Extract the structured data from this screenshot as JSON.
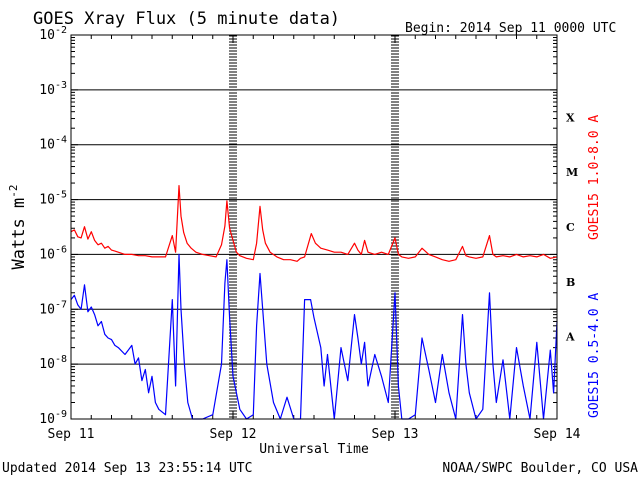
{
  "title": "GOES Xray Flux (5 minute data)",
  "begin_label": "Begin:  2014 Sep 11 0000 UTC",
  "footer_left": "Updated 2014 Sep 13 23:55:14 UTC",
  "footer_right": "NOAA/SWPC Boulder, CO USA",
  "colors": {
    "long": "#ff0000",
    "short": "#0000ff",
    "grid": "#000000"
  },
  "chart_data": {
    "type": "line",
    "title": "GOES Xray Flux (5 minute data)",
    "xlabel": "Universal Time",
    "ylabel": "Watts m",
    "ylabel_sup": "-2",
    "yscale": "log",
    "ylim": [
      1e-09,
      0.01
    ],
    "xlim": [
      0,
      72
    ],
    "x_unit": "hours since 2014 Sep 11 00:00 UTC",
    "x_ticks": [
      {
        "x": 0,
        "label": "Sep 11"
      },
      {
        "x": 24,
        "label": "Sep 12"
      },
      {
        "x": 48,
        "label": "Sep 13"
      },
      {
        "x": 72,
        "label": "Sep 14"
      }
    ],
    "y_ticks": [
      {
        "base": "10",
        "exp": "-9",
        "value": 1e-09
      },
      {
        "base": "10",
        "exp": "-8",
        "value": 1e-08
      },
      {
        "base": "10",
        "exp": "-7",
        "value": 1e-07
      },
      {
        "base": "10",
        "exp": "-6",
        "value": 1e-06
      },
      {
        "base": "10",
        "exp": "-5",
        "value": 1e-05
      },
      {
        "base": "10",
        "exp": "-4",
        "value": 0.0001
      },
      {
        "base": "10",
        "exp": "-3",
        "value": 0.001
      },
      {
        "base": "10",
        "exp": "-2",
        "value": 0.01
      }
    ],
    "flare_classes": [
      {
        "label": "X",
        "value": 0.000316
      },
      {
        "label": "M",
        "value": 3.16e-05
      },
      {
        "label": "C",
        "value": 3.16e-06
      },
      {
        "label": "B",
        "value": 3.16e-07
      },
      {
        "label": "A",
        "value": 3.16e-08
      }
    ],
    "series": [
      {
        "name": "GOES15 1.0-8.0 A",
        "color": "#ff0000",
        "points": [
          [
            0,
            2.6e-06
          ],
          [
            0.5,
            2.8e-06
          ],
          [
            1,
            2.1e-06
          ],
          [
            1.5,
            2e-06
          ],
          [
            2,
            3.2e-06
          ],
          [
            2.5,
            1.9e-06
          ],
          [
            3,
            2.6e-06
          ],
          [
            3.5,
            1.8e-06
          ],
          [
            4,
            1.5e-06
          ],
          [
            4.5,
            1.6e-06
          ],
          [
            5,
            1.3e-06
          ],
          [
            5.5,
            1.4e-06
          ],
          [
            6,
            1.2e-06
          ],
          [
            6.5,
            1.15e-06
          ],
          [
            7,
            1.1e-06
          ],
          [
            7.5,
            1.05e-06
          ],
          [
            8,
            1e-06
          ],
          [
            9,
            1e-06
          ],
          [
            10,
            9.5e-07
          ],
          [
            11,
            9.5e-07
          ],
          [
            12,
            9e-07
          ],
          [
            13,
            9e-07
          ],
          [
            14,
            9e-07
          ],
          [
            15,
            2.2e-06
          ],
          [
            15.5,
            1.1e-06
          ],
          [
            16,
            1.8e-05
          ],
          [
            16.3,
            5e-06
          ],
          [
            16.7,
            2.5e-06
          ],
          [
            17.2,
            1.6e-06
          ],
          [
            17.8,
            1.3e-06
          ],
          [
            18.5,
            1.1e-06
          ],
          [
            19.5,
            1e-06
          ],
          [
            20.5,
            9.5e-07
          ],
          [
            21.5,
            9e-07
          ],
          [
            22.3,
            1.5e-06
          ],
          [
            22.8,
            3.3e-06
          ],
          [
            23.1,
            9.5e-06
          ],
          [
            23.5,
            3e-06
          ],
          [
            24,
            1.8e-06
          ],
          [
            24.5,
            1.1e-06
          ],
          [
            25,
            9.5e-07
          ],
          [
            26,
            8.5e-07
          ],
          [
            27,
            8e-07
          ],
          [
            27.5,
            1.6e-06
          ],
          [
            28,
            7.5e-06
          ],
          [
            28.4,
            2.8e-06
          ],
          [
            28.8,
            1.6e-06
          ],
          [
            29.5,
            1.1e-06
          ],
          [
            30.5,
            9e-07
          ],
          [
            31.5,
            8e-07
          ],
          [
            32.5,
            8e-07
          ],
          [
            33.5,
            7.5e-07
          ],
          [
            34,
            8.5e-07
          ],
          [
            34.6,
            9e-07
          ],
          [
            35.6,
            2.4e-06
          ],
          [
            36.2,
            1.6e-06
          ],
          [
            37,
            1.3e-06
          ],
          [
            38,
            1.2e-06
          ],
          [
            39,
            1.1e-06
          ],
          [
            40,
            1.1e-06
          ],
          [
            41,
            1e-06
          ],
          [
            42,
            1.6e-06
          ],
          [
            42.5,
            1.2e-06
          ],
          [
            43,
            1e-06
          ],
          [
            43.5,
            1.8e-06
          ],
          [
            44,
            1.1e-06
          ],
          [
            45,
            1e-06
          ],
          [
            46,
            1.1e-06
          ],
          [
            47,
            1e-06
          ],
          [
            48,
            2e-06
          ],
          [
            48.5,
            1e-06
          ],
          [
            49,
            9e-07
          ],
          [
            50,
            8.5e-07
          ],
          [
            51,
            9e-07
          ],
          [
            52,
            1.3e-06
          ],
          [
            53,
            1e-06
          ],
          [
            54,
            9e-07
          ],
          [
            55,
            8e-07
          ],
          [
            56,
            7.5e-07
          ],
          [
            57,
            8e-07
          ],
          [
            58,
            1.4e-06
          ],
          [
            58.5,
            9.5e-07
          ],
          [
            59,
            9e-07
          ],
          [
            60,
            8.5e-07
          ],
          [
            61,
            9e-07
          ],
          [
            62,
            2.2e-06
          ],
          [
            62.5,
            1e-06
          ],
          [
            63,
            9e-07
          ],
          [
            64,
            9.5e-07
          ],
          [
            65,
            9e-07
          ],
          [
            66,
            1e-06
          ],
          [
            67,
            9e-07
          ],
          [
            68,
            9.5e-07
          ],
          [
            69,
            9e-07
          ],
          [
            70,
            1e-06
          ],
          [
            71,
            8.5e-07
          ],
          [
            72,
            9e-07
          ]
        ]
      },
      {
        "name": "GOES15 0.5-4.0 A",
        "color": "#0000ff",
        "points": [
          [
            0,
            1.5e-07
          ],
          [
            0.5,
            1.8e-07
          ],
          [
            1,
            1.2e-07
          ],
          [
            1.5,
            1e-07
          ],
          [
            2,
            2.8e-07
          ],
          [
            2.5,
            9e-08
          ],
          [
            3,
            1.1e-07
          ],
          [
            3.5,
            8e-08
          ],
          [
            4,
            5e-08
          ],
          [
            4.5,
            6e-08
          ],
          [
            5,
            3.5e-08
          ],
          [
            5.5,
            3e-08
          ],
          [
            6,
            2.8e-08
          ],
          [
            6.5,
            2.2e-08
          ],
          [
            7,
            2e-08
          ],
          [
            8,
            1.5e-08
          ],
          [
            9,
            2.2e-08
          ],
          [
            9.5,
            1e-08
          ],
          [
            10,
            1.3e-08
          ],
          [
            10.5,
            5e-09
          ],
          [
            11,
            8e-09
          ],
          [
            11.5,
            3e-09
          ],
          [
            12,
            6e-09
          ],
          [
            12.5,
            2e-09
          ],
          [
            13,
            1.5e-09
          ],
          [
            14,
            1.2e-09
          ],
          [
            15,
            1.5e-07
          ],
          [
            15.5,
            4e-09
          ],
          [
            16,
            1e-06
          ],
          [
            16.3,
            1e-07
          ],
          [
            16.8,
            1e-08
          ],
          [
            17.3,
            2e-09
          ],
          [
            18,
            1e-09
          ],
          [
            19.5,
            1e-09
          ],
          [
            21,
            1.2e-09
          ],
          [
            22.3,
            1e-08
          ],
          [
            22.8,
            3e-07
          ],
          [
            23.1,
            8e-07
          ],
          [
            23.5,
            7e-08
          ],
          [
            24,
            6e-09
          ],
          [
            25,
            1.5e-09
          ],
          [
            26,
            1e-09
          ],
          [
            27,
            1.2e-09
          ],
          [
            27.5,
            5e-08
          ],
          [
            28,
            4.5e-07
          ],
          [
            28.4,
            1e-07
          ],
          [
            29,
            1e-08
          ],
          [
            30,
            2e-09
          ],
          [
            31,
            1e-09
          ],
          [
            32,
            2.5e-09
          ],
          [
            33,
            1e-09
          ],
          [
            34,
            1e-09
          ],
          [
            34.6,
            1.5e-07
          ],
          [
            35.5,
            1.5e-07
          ],
          [
            36,
            7e-08
          ],
          [
            37,
            2e-08
          ],
          [
            37.5,
            4e-09
          ],
          [
            38,
            1.5e-08
          ],
          [
            39,
            1e-09
          ],
          [
            40,
            2e-08
          ],
          [
            41,
            5e-09
          ],
          [
            42,
            8e-08
          ],
          [
            42.5,
            3e-08
          ],
          [
            43,
            1e-08
          ],
          [
            43.5,
            2.5e-08
          ],
          [
            44,
            4e-09
          ],
          [
            45,
            1.5e-08
          ],
          [
            46,
            6e-09
          ],
          [
            47,
            2e-09
          ],
          [
            48,
            2e-07
          ],
          [
            48.5,
            4e-09
          ],
          [
            49,
            1e-09
          ],
          [
            50,
            1e-09
          ],
          [
            51,
            1.2e-09
          ],
          [
            52,
            3e-08
          ],
          [
            53,
            8e-09
          ],
          [
            54,
            2e-09
          ],
          [
            55,
            1.5e-08
          ],
          [
            56,
            3e-09
          ],
          [
            57,
            1e-09
          ],
          [
            58,
            8e-08
          ],
          [
            58.5,
            1e-08
          ],
          [
            59,
            3e-09
          ],
          [
            60,
            1e-09
          ],
          [
            61,
            1.5e-09
          ],
          [
            62,
            2e-07
          ],
          [
            62.5,
            1e-08
          ],
          [
            63,
            2e-09
          ],
          [
            64,
            1.2e-08
          ],
          [
            65,
            1e-09
          ],
          [
            66,
            2e-08
          ],
          [
            67,
            4e-09
          ],
          [
            68,
            1e-09
          ],
          [
            69,
            2.5e-08
          ],
          [
            70,
            1e-09
          ],
          [
            71,
            1.8e-08
          ],
          [
            71.5,
            3e-09
          ],
          [
            72,
            6e-08
          ]
        ]
      }
    ]
  }
}
